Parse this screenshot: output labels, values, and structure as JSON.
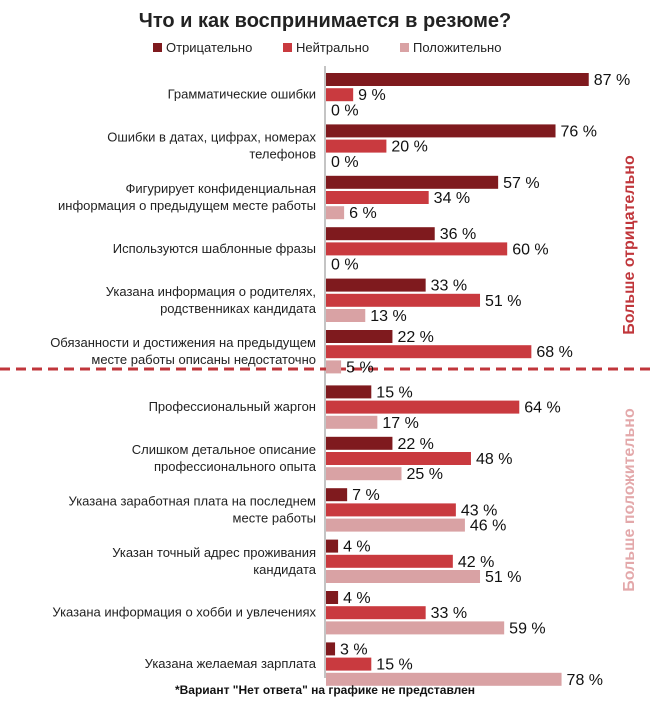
{
  "colors": {
    "negative": "#7f1a1e",
    "neutral": "#c93a3f",
    "positive": "#d9a2a4",
    "divider": "#c0363b",
    "side_negative": "#c0363b",
    "side_positive": "#e3a8aa"
  },
  "chart_data": {
    "type": "bar",
    "orientation": "horizontal",
    "title": "Что и как воспринимается в резюме?",
    "categories": [
      [
        "Грамматические ошибки"
      ],
      [
        "Ошибки в датах, цифрах, номерах",
        "телефонов"
      ],
      [
        "Фигурирует конфиденциальная",
        "информация о предыдущем месте работы"
      ],
      [
        "Используются шаблонные фразы"
      ],
      [
        "Указана информация о родителях,",
        "родственниках кандидата"
      ],
      [
        "Обязанности и достижения на предыдущем",
        "месте работы описаны недостаточно"
      ],
      [
        "Профессиональный жаргон"
      ],
      [
        "Слишком детальное описание",
        "профессионального опыта"
      ],
      [
        "Указана заработная плата на последнем",
        "месте работы"
      ],
      [
        "Указан точный адрес проживания",
        "кандидата"
      ],
      [
        "Указана информация о хобби и увлечениях"
      ],
      [
        "Указана желаемая зарплата"
      ]
    ],
    "series": [
      {
        "name": "Отрицательно",
        "values": [
          87,
          76,
          57,
          36,
          33,
          22,
          15,
          22,
          7,
          4,
          4,
          3
        ]
      },
      {
        "name": "Нейтрально",
        "values": [
          9,
          20,
          34,
          60,
          51,
          68,
          64,
          48,
          43,
          42,
          33,
          15
        ]
      },
      {
        "name": "Положительно",
        "values": [
          0,
          0,
          6,
          0,
          13,
          5,
          17,
          25,
          46,
          51,
          59,
          78
        ]
      }
    ],
    "value_suffix": " %",
    "xlim": [
      0,
      100
    ],
    "legend_position": "top",
    "grid": false,
    "group_labels": {
      "negative": "Больше отрицательно",
      "positive": "Больше положительно"
    },
    "footnote": "*Вариант \"Нет ответа\" на графике не представлен"
  }
}
